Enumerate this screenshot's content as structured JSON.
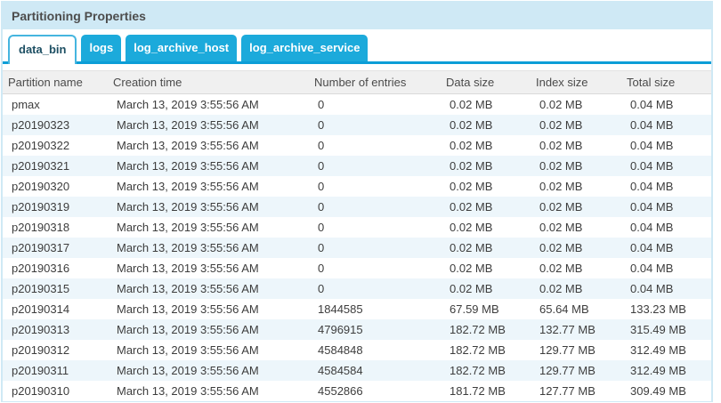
{
  "panel": {
    "title": "Partitioning Properties"
  },
  "tabs": [
    {
      "label": "data_bin",
      "active": true
    },
    {
      "label": "logs",
      "active": false
    },
    {
      "label": "log_archive_host",
      "active": false
    },
    {
      "label": "log_archive_service",
      "active": false
    }
  ],
  "table": {
    "columns": [
      "Partition name",
      "Creation time",
      "Number of entries",
      "Data size",
      "Index size",
      "Total size"
    ],
    "rows": [
      [
        "pmax",
        "March 13, 2019 3:55:56 AM",
        "0",
        "0.02 MB",
        "0.02 MB",
        "0.04 MB"
      ],
      [
        "p20190323",
        "March 13, 2019 3:55:56 AM",
        "0",
        "0.02 MB",
        "0.02 MB",
        "0.04 MB"
      ],
      [
        "p20190322",
        "March 13, 2019 3:55:56 AM",
        "0",
        "0.02 MB",
        "0.02 MB",
        "0.04 MB"
      ],
      [
        "p20190321",
        "March 13, 2019 3:55:56 AM",
        "0",
        "0.02 MB",
        "0.02 MB",
        "0.04 MB"
      ],
      [
        "p20190320",
        "March 13, 2019 3:55:56 AM",
        "0",
        "0.02 MB",
        "0.02 MB",
        "0.04 MB"
      ],
      [
        "p20190319",
        "March 13, 2019 3:55:56 AM",
        "0",
        "0.02 MB",
        "0.02 MB",
        "0.04 MB"
      ],
      [
        "p20190318",
        "March 13, 2019 3:55:56 AM",
        "0",
        "0.02 MB",
        "0.02 MB",
        "0.04 MB"
      ],
      [
        "p20190317",
        "March 13, 2019 3:55:56 AM",
        "0",
        "0.02 MB",
        "0.02 MB",
        "0.04 MB"
      ],
      [
        "p20190316",
        "March 13, 2019 3:55:56 AM",
        "0",
        "0.02 MB",
        "0.02 MB",
        "0.04 MB"
      ],
      [
        "p20190315",
        "March 13, 2019 3:55:56 AM",
        "0",
        "0.02 MB",
        "0.02 MB",
        "0.04 MB"
      ],
      [
        "p20190314",
        "March 13, 2019 3:55:56 AM",
        "1844585",
        "67.59 MB",
        "65.64 MB",
        "133.23 MB"
      ],
      [
        "p20190313",
        "March 13, 2019 3:55:56 AM",
        "4796915",
        "182.72 MB",
        "132.77 MB",
        "315.49 MB"
      ],
      [
        "p20190312",
        "March 13, 2019 3:55:56 AM",
        "4584848",
        "182.72 MB",
        "129.77 MB",
        "312.49 MB"
      ],
      [
        "p20190311",
        "March 13, 2019 3:55:56 AM",
        "4584584",
        "182.72 MB",
        "129.77 MB",
        "312.49 MB"
      ],
      [
        "p20190310",
        "March 13, 2019 3:55:56 AM",
        "4552866",
        "181.72 MB",
        "127.77 MB",
        "309.49 MB"
      ]
    ]
  },
  "colors": {
    "panel_border": "#cfe9f5",
    "title_bar_bg": "#cfe9f5",
    "tab_bg": "#1caadb",
    "tab_underline": "#0c9ed7",
    "active_tab_border": "#45b5df",
    "active_tab_text": "#1d4f63",
    "header_row_bg": "#f0f0f0",
    "stripe_row_bg": "#edf6fb",
    "body_text": "#3d3d3d"
  }
}
